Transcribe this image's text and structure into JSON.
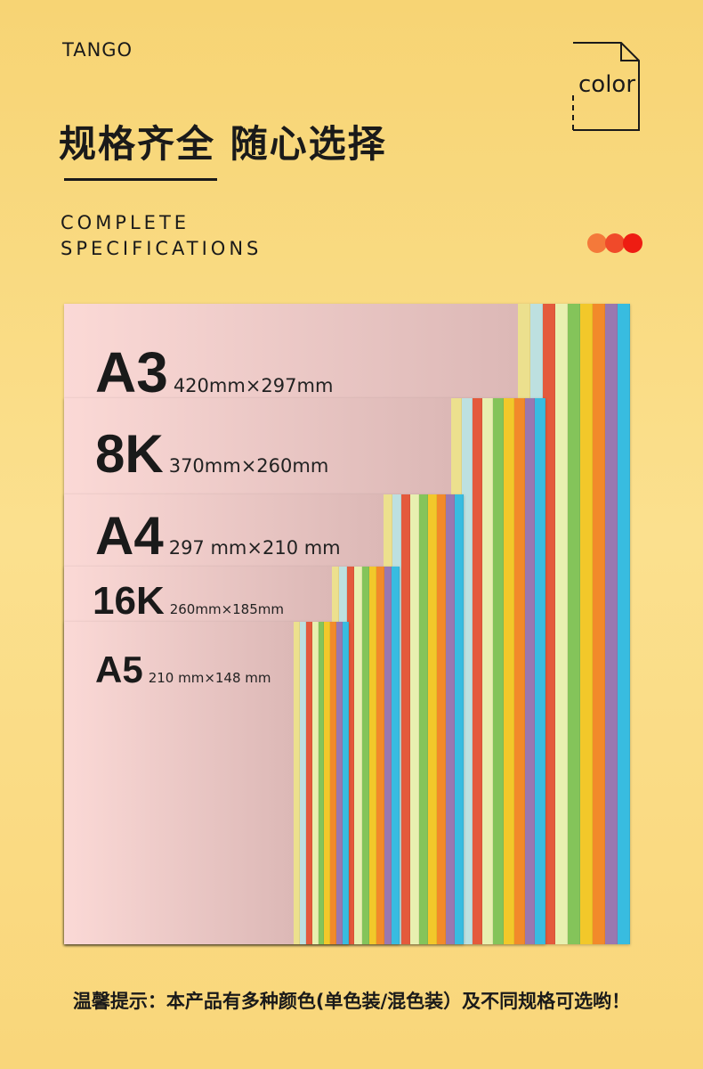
{
  "brand": "TANGO",
  "title": "规格齐全 随心选择",
  "subtitle_en": [
    "COMPLETE",
    "SPECIFICATIONS"
  ],
  "color_icon": {
    "icon": "document-icon",
    "label": "color"
  },
  "dots": [
    "#f4793a",
    "#f04a2a",
    "#ee1c12"
  ],
  "strip_colors": [
    "#ece08e",
    "#bde0e0",
    "#e45a3c",
    "#e8f0b0",
    "#84c45a",
    "#f2c82a",
    "#f28a2a",
    "#9a78b0",
    "#38bce0"
  ],
  "sizes": [
    {
      "name": "A3",
      "dims": "420mm×297mm"
    },
    {
      "name": "8K",
      "dims": "370mm×260mm"
    },
    {
      "name": "A4",
      "dims": "297 mm×210 mm"
    },
    {
      "name": "16K",
      "dims": "260mm×185mm"
    },
    {
      "name": "A5",
      "dims": "210 mm×148 mm"
    }
  ],
  "tip": "温馨提示：本产品有多种颜色(单色装/混色装）及不同规格可选哟！"
}
